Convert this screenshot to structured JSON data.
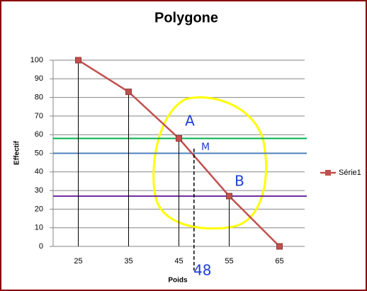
{
  "chart_data": {
    "type": "line",
    "title": "Polygone",
    "x_label": "Poids",
    "y_label": "Effectif",
    "categories": [
      25,
      35,
      45,
      55,
      65
    ],
    "series": [
      {
        "name": "Série1",
        "color": "#c0504d",
        "values": [
          100,
          83,
          58,
          27,
          0
        ]
      }
    ],
    "ylim": [
      0,
      100
    ],
    "yticks": [
      0,
      10,
      20,
      30,
      40,
      50,
      60,
      70,
      80,
      90,
      100
    ],
    "grid": true,
    "legend": "right",
    "reference_lines": [
      {
        "value": 58,
        "color": "#00b050"
      },
      {
        "value": 50,
        "color": "#4f81bd"
      },
      {
        "value": 27,
        "color": "#7030a0"
      }
    ],
    "vertical_marker": {
      "value": 48,
      "label": "48"
    },
    "annotations": [
      "A",
      "M",
      "B"
    ]
  }
}
